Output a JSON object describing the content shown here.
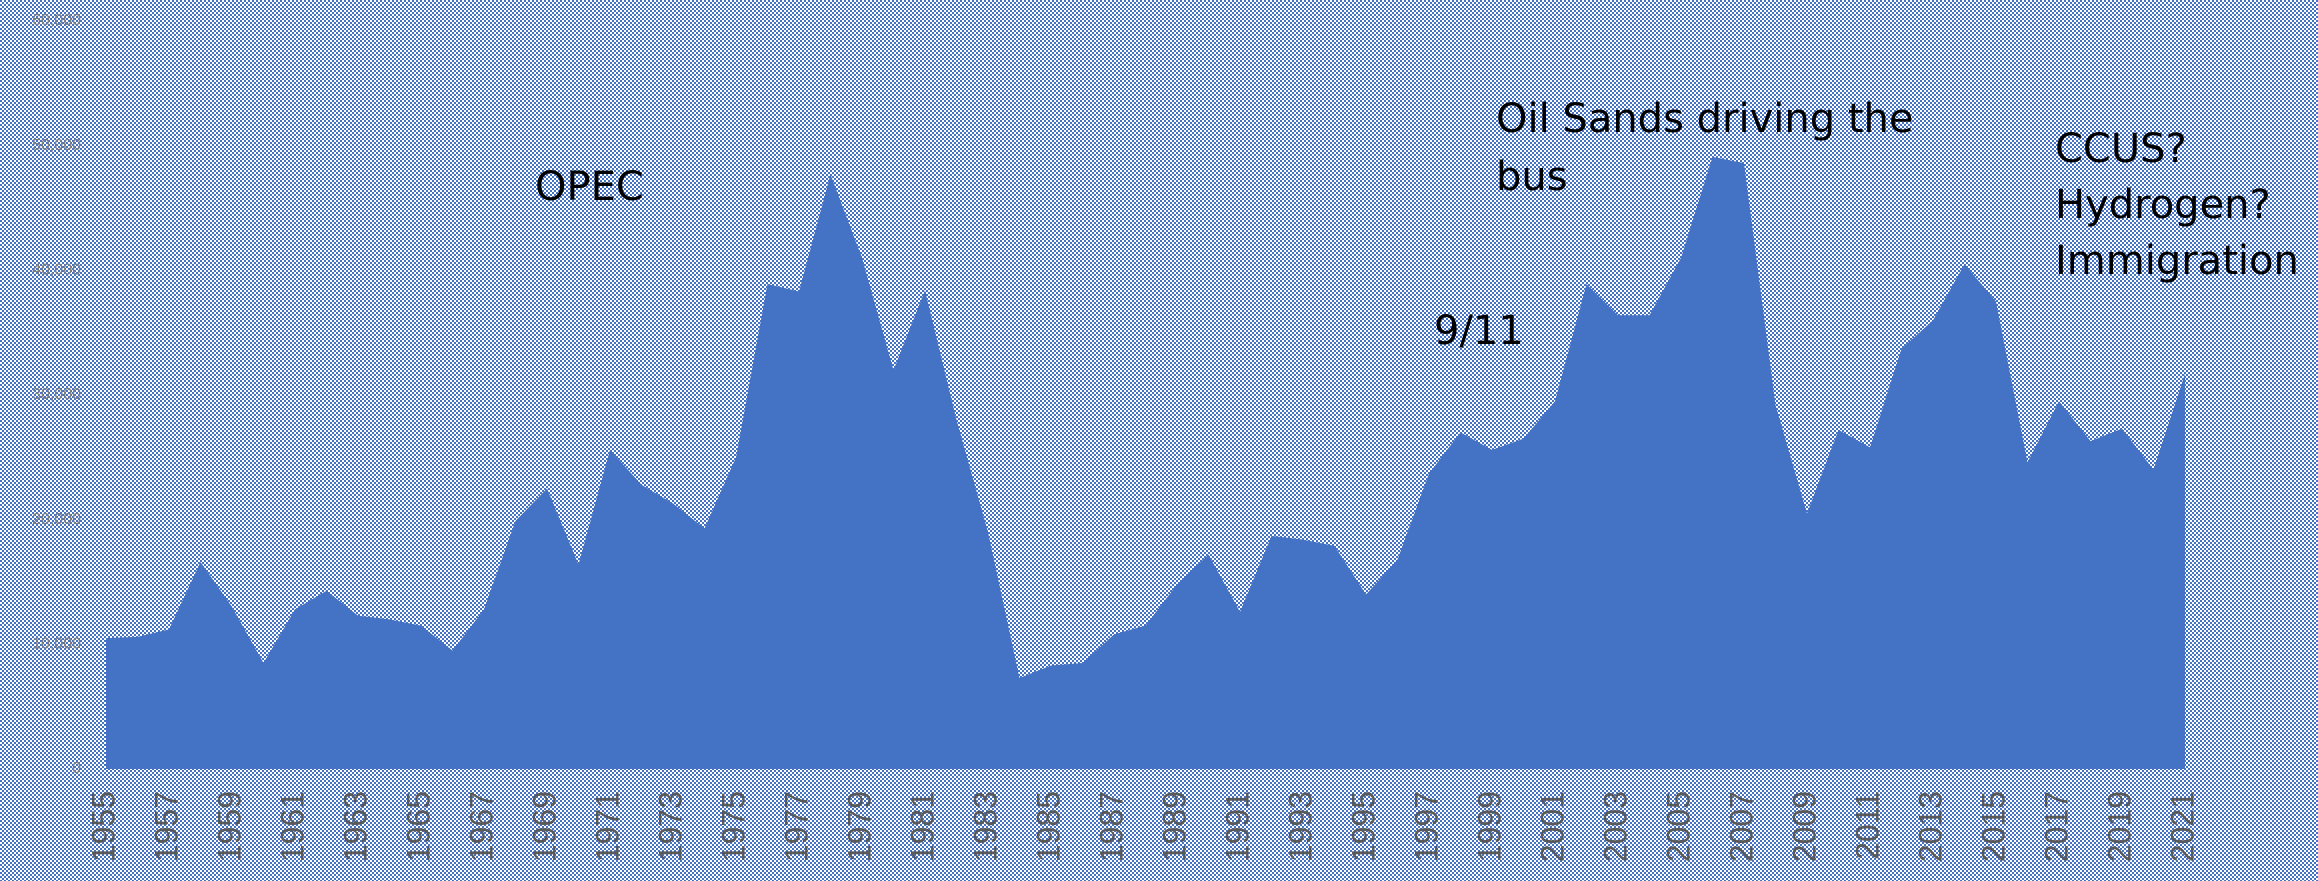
{
  "chart_data": {
    "type": "area",
    "categories": [
      "1955",
      null,
      "1957",
      null,
      "1959",
      null,
      "1961",
      null,
      "1963",
      null,
      "1965",
      null,
      "1967",
      null,
      "1969",
      null,
      "1971",
      null,
      "1973",
      null,
      "1975",
      null,
      "1977",
      null,
      "1979",
      null,
      "1981",
      null,
      "1983",
      null,
      "1985",
      null,
      "1987",
      null,
      "1989",
      null,
      "1991",
      null,
      "1993",
      null,
      "1995",
      null,
      "1997",
      null,
      "1999",
      null,
      "2001",
      null,
      "2003",
      null,
      "2005",
      null,
      "2007",
      null,
      "2009",
      null,
      "2011",
      null,
      "2013",
      null,
      "2015",
      null,
      "2017",
      null,
      "2019",
      null,
      "2021"
    ],
    "values": [
      10500,
      10600,
      11200,
      16600,
      13000,
      8500,
      12800,
      14300,
      12300,
      12000,
      11500,
      9500,
      12800,
      19900,
      22500,
      16400,
      25600,
      22800,
      21300,
      19300,
      25000,
      38900,
      38300,
      47700,
      41000,
      32000,
      38400,
      28000,
      19000,
      7300,
      8300,
      8500,
      10800,
      11500,
      14800,
      17200,
      12600,
      18700,
      18400,
      17900,
      14000,
      16800,
      23700,
      27000,
      25600,
      26500,
      29500,
      38900,
      36400,
      36400,
      41000,
      49100,
      48600,
      29200,
      20500,
      27200,
      25800,
      33700,
      36000,
      40500,
      37500,
      24600,
      29500,
      26300,
      27300,
      24000,
      31700
    ],
    "color": "#4472c4",
    "ylim": [
      0,
      60000
    ],
    "yticks": [
      0,
      {
        "value": 10000,
        "label": "10,000"
      },
      {
        "value": 20000,
        "label": "20,000"
      },
      {
        "value": 30000,
        "label": "30,000"
      },
      {
        "value": 40000,
        "label": "40,000"
      },
      {
        "value": 50000,
        "label": "50,000"
      },
      {
        "value": 60000,
        "label": "60,000"
      }
    ],
    "annotations": [
      [
        "OPEC"
      ],
      [
        "Oil Sands driving the",
        "bus"
      ],
      [
        "9/11"
      ],
      [
        "CCUS?",
        "Hydrogen?",
        "Immigration"
      ]
    ]
  }
}
